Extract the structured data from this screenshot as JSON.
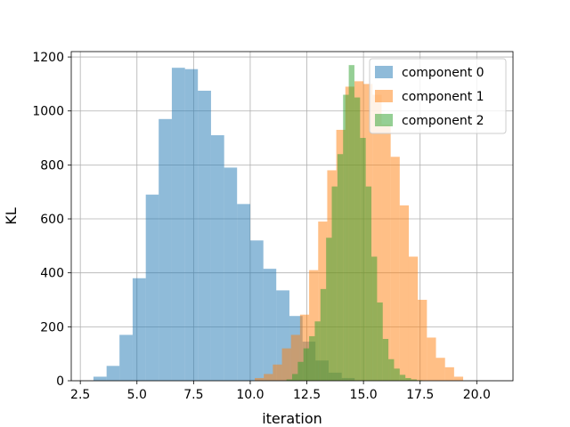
{
  "chart_data": {
    "type": "histogram",
    "title": "",
    "xlabel": "iteration",
    "ylabel": "KL",
    "xlim": [
      2.1,
      21.6
    ],
    "ylim": [
      0,
      1220
    ],
    "xticks": [
      2.5,
      5.0,
      7.5,
      10.0,
      12.5,
      15.0,
      17.5,
      20.0
    ],
    "xtick_labels": [
      "2.5",
      "5.0",
      "7.5",
      "10.0",
      "12.5",
      "15.0",
      "17.5",
      "20.0"
    ],
    "yticks": [
      0,
      200,
      400,
      600,
      800,
      1000,
      1200
    ],
    "ytick_labels": [
      "0",
      "200",
      "400",
      "600",
      "800",
      "1000",
      "1200"
    ],
    "grid": true,
    "legend_position": "top-right",
    "bar_alpha": 0.5,
    "series": [
      {
        "name": "component 0",
        "color": "#1f77b4",
        "edges": [
          3.08,
          3.66,
          4.23,
          4.81,
          5.39,
          5.96,
          6.54,
          7.12,
          7.69,
          8.27,
          8.85,
          9.42,
          10.0,
          10.58,
          11.15,
          11.73,
          12.31,
          12.88,
          13.46,
          14.04,
          14.61
        ],
        "counts": [
          15,
          55,
          170,
          380,
          690,
          970,
          1160,
          1155,
          1075,
          910,
          790,
          655,
          520,
          415,
          335,
          240,
          145,
          75,
          30,
          10
        ]
      },
      {
        "name": "component 1",
        "color": "#ff7f0e",
        "edges": [
          10.2,
          10.6,
          11.0,
          11.4,
          11.8,
          12.2,
          12.6,
          13.0,
          13.4,
          13.8,
          14.2,
          14.6,
          15.0,
          15.4,
          15.8,
          16.2,
          16.6,
          17.0,
          17.4,
          17.8,
          18.2,
          18.6,
          19.0,
          19.4
        ],
        "counts": [
          10,
          25,
          60,
          120,
          170,
          245,
          410,
          590,
          780,
          930,
          1090,
          1110,
          1100,
          1060,
          950,
          830,
          650,
          460,
          300,
          160,
          85,
          50,
          15
        ]
      },
      {
        "name": "component 2",
        "color": "#2ca02c",
        "edges": [
          11.6,
          11.85,
          12.1,
          12.35,
          12.6,
          12.85,
          13.1,
          13.35,
          13.6,
          13.85,
          14.1,
          14.35,
          14.6,
          14.85,
          15.1,
          15.35,
          15.6,
          15.85,
          16.1,
          16.35,
          16.6,
          16.85,
          17.1,
          17.35,
          17.6
        ],
        "counts": [
          5,
          25,
          70,
          120,
          165,
          220,
          340,
          530,
          720,
          840,
          1060,
          1170,
          1050,
          900,
          720,
          460,
          290,
          155,
          80,
          45,
          22,
          10,
          5,
          2
        ]
      }
    ]
  }
}
